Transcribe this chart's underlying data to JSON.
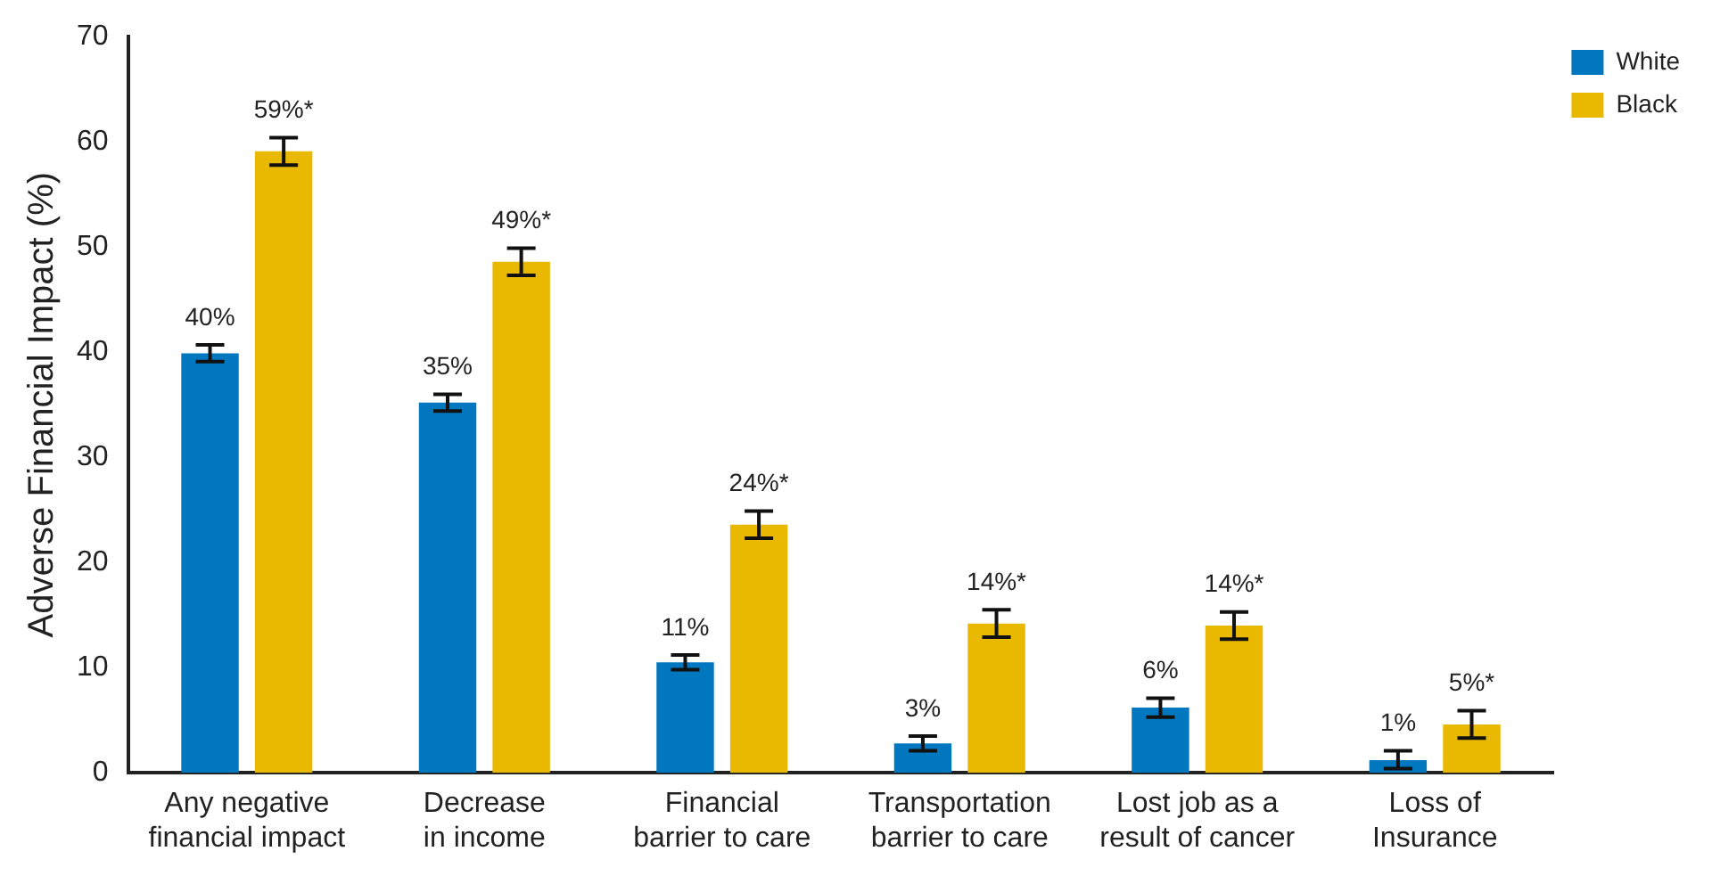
{
  "chart_data": {
    "type": "bar",
    "ylabel": "Adverse Financial Impact (%)",
    "categories": [
      "Any negative financial impact",
      "Decrease in income",
      "Financial barrier to care",
      "Transportation barrier to care",
      "Lost job as a result of cancer",
      "Loss of Insurance"
    ],
    "series": [
      {
        "name": "White",
        "color": "#0077bf",
        "values": [
          39.9,
          35.2,
          10.5,
          2.8,
          6.2,
          1.2
        ],
        "errors": [
          0.8,
          0.8,
          0.7,
          0.7,
          0.9,
          [
            0.8,
            0.9
          ]
        ],
        "value_labels": [
          "40%",
          "35%",
          "11%",
          "3%",
          "6%",
          "1%"
        ]
      },
      {
        "name": "Black",
        "color": "#e9b800",
        "values": [
          59.1,
          48.6,
          23.6,
          14.2,
          14,
          4.6
        ],
        "errors": [
          1.3,
          1.3,
          1.3,
          1.3,
          1.3,
          1.3
        ],
        "value_labels": [
          "59%*",
          "49%*",
          "24%*",
          "14%*",
          "14%*",
          "5%*"
        ]
      }
    ],
    "ylim": [
      0,
      70
    ],
    "yticks": [
      0,
      10,
      20,
      30,
      40,
      50,
      60,
      70
    ],
    "grid": false,
    "legend": "top right"
  }
}
